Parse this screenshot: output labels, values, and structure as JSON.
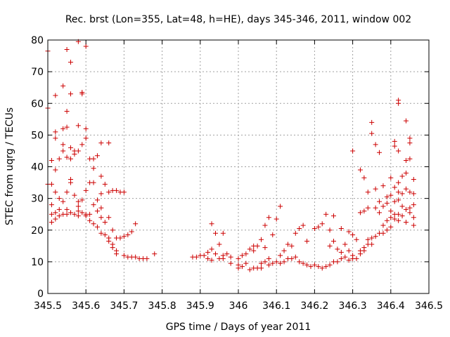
{
  "chart_data": {
    "type": "scatter",
    "title": "Rec. brst (Lon=355, Lat=48, h=HE), days 345-346, 2011, window 002",
    "xlabel": "GPS time / Days of year 2011",
    "ylabel": "STEC from uqrg / TECUs",
    "xlim": [
      345.5,
      346.5
    ],
    "ylim": [
      0,
      80
    ],
    "xticks": [
      "345.5",
      "345.6",
      "345.7",
      "345.8",
      "345.9",
      "346",
      "346.1",
      "346.2",
      "346.3",
      "346.4",
      "346.5"
    ],
    "yticks": [
      "0",
      "10",
      "20",
      "30",
      "40",
      "50",
      "60",
      "70",
      "80"
    ],
    "grid": true,
    "marker": "plus",
    "color": "#cc0000",
    "points": [
      [
        345.5,
        76.5
      ],
      [
        345.5,
        58.5
      ],
      [
        345.5,
        34.5
      ],
      [
        345.51,
        42
      ],
      [
        345.51,
        34.5
      ],
      [
        345.51,
        28
      ],
      [
        345.51,
        25
      ],
      [
        345.51,
        22.5
      ],
      [
        345.52,
        62.5
      ],
      [
        345.52,
        51
      ],
      [
        345.52,
        49
      ],
      [
        345.52,
        39
      ],
      [
        345.52,
        32
      ],
      [
        345.52,
        25.5
      ],
      [
        345.52,
        23.5
      ],
      [
        345.53,
        42.5
      ],
      [
        345.53,
        30
      ],
      [
        345.53,
        26.5
      ],
      [
        345.53,
        24.5
      ],
      [
        345.54,
        65.5
      ],
      [
        345.54,
        52
      ],
      [
        345.54,
        47
      ],
      [
        345.54,
        45
      ],
      [
        345.54,
        29
      ],
      [
        345.54,
        25
      ],
      [
        345.55,
        77
      ],
      [
        345.55,
        57.5
      ],
      [
        345.55,
        52.5
      ],
      [
        345.55,
        43
      ],
      [
        345.55,
        32
      ],
      [
        345.55,
        26.5
      ],
      [
        345.55,
        25
      ],
      [
        345.56,
        73
      ],
      [
        345.56,
        63
      ],
      [
        345.56,
        46
      ],
      [
        345.56,
        42.5
      ],
      [
        345.56,
        36
      ],
      [
        345.56,
        35
      ],
      [
        345.56,
        25.5
      ],
      [
        345.57,
        45
      ],
      [
        345.57,
        44
      ],
      [
        345.57,
        31
      ],
      [
        345.57,
        25
      ],
      [
        345.58,
        79.5
      ],
      [
        345.58,
        53
      ],
      [
        345.58,
        45
      ],
      [
        345.58,
        29
      ],
      [
        345.58,
        27.5
      ],
      [
        345.58,
        26
      ],
      [
        345.58,
        24.5
      ],
      [
        345.59,
        63.5
      ],
      [
        345.59,
        63
      ],
      [
        345.59,
        47
      ],
      [
        345.59,
        29.5
      ],
      [
        345.59,
        25.5
      ],
      [
        345.6,
        78
      ],
      [
        345.6,
        52
      ],
      [
        345.6,
        49
      ],
      [
        345.6,
        32.5
      ],
      [
        345.6,
        25
      ],
      [
        345.6,
        24.5
      ],
      [
        345.61,
        42.5
      ],
      [
        345.61,
        35
      ],
      [
        345.61,
        25
      ],
      [
        345.61,
        23
      ],
      [
        345.62,
        42.5
      ],
      [
        345.62,
        39.5
      ],
      [
        345.62,
        35
      ],
      [
        345.62,
        28
      ],
      [
        345.62,
        22
      ],
      [
        345.63,
        43.5
      ],
      [
        345.63,
        29.5
      ],
      [
        345.63,
        26
      ],
      [
        345.63,
        21
      ],
      [
        345.64,
        47.5
      ],
      [
        345.64,
        37
      ],
      [
        345.64,
        31.5
      ],
      [
        345.64,
        27
      ],
      [
        345.64,
        24
      ],
      [
        345.64,
        19
      ],
      [
        345.65,
        34.5
      ],
      [
        345.65,
        22.5
      ],
      [
        345.65,
        18.5
      ],
      [
        345.66,
        47.5
      ],
      [
        345.66,
        32
      ],
      [
        345.66,
        24
      ],
      [
        345.66,
        17.5
      ],
      [
        345.66,
        16.5
      ],
      [
        345.67,
        32.5
      ],
      [
        345.67,
        20
      ],
      [
        345.67,
        15.5
      ],
      [
        345.67,
        14.5
      ],
      [
        345.68,
        32.5
      ],
      [
        345.68,
        17.5
      ],
      [
        345.68,
        13.5
      ],
      [
        345.68,
        12.5
      ],
      [
        345.69,
        32
      ],
      [
        345.69,
        17.5
      ],
      [
        345.7,
        32
      ],
      [
        345.7,
        18
      ],
      [
        345.7,
        12
      ],
      [
        345.71,
        18.5
      ],
      [
        345.71,
        11.5
      ],
      [
        345.72,
        19.5
      ],
      [
        345.72,
        11.5
      ],
      [
        345.73,
        22
      ],
      [
        345.73,
        11.5
      ],
      [
        345.74,
        11
      ],
      [
        345.75,
        11
      ],
      [
        345.76,
        11
      ],
      [
        345.78,
        12.5
      ],
      [
        345.88,
        11.5
      ],
      [
        345.89,
        11.5
      ],
      [
        345.9,
        12
      ],
      [
        345.91,
        12
      ],
      [
        345.92,
        11
      ],
      [
        345.92,
        13
      ],
      [
        345.93,
        22
      ],
      [
        345.93,
        14
      ],
      [
        345.93,
        10.5
      ],
      [
        345.94,
        19
      ],
      [
        345.94,
        12.5
      ],
      [
        345.95,
        15.5
      ],
      [
        345.95,
        11
      ],
      [
        345.96,
        19
      ],
      [
        345.96,
        12
      ],
      [
        345.96,
        11
      ],
      [
        345.97,
        12.5
      ],
      [
        345.98,
        11.5
      ],
      [
        345.98,
        9.5
      ],
      [
        346.0,
        11
      ],
      [
        346.0,
        9
      ],
      [
        346.0,
        8
      ],
      [
        346.01,
        12
      ],
      [
        346.01,
        8.5
      ],
      [
        346.02,
        12.5
      ],
      [
        346.02,
        9.5
      ],
      [
        346.03,
        14
      ],
      [
        346.03,
        7.5
      ],
      [
        346.04,
        15
      ],
      [
        346.04,
        13.5
      ],
      [
        346.04,
        8
      ],
      [
        346.05,
        15
      ],
      [
        346.05,
        8
      ],
      [
        346.06,
        17
      ],
      [
        346.06,
        9.5
      ],
      [
        346.06,
        8
      ],
      [
        346.07,
        21.5
      ],
      [
        346.07,
        14.5
      ],
      [
        346.07,
        10
      ],
      [
        346.08,
        24
      ],
      [
        346.08,
        11
      ],
      [
        346.08,
        9
      ],
      [
        346.09,
        18.5
      ],
      [
        346.09,
        9.5
      ],
      [
        346.1,
        23.5
      ],
      [
        346.1,
        10
      ],
      [
        346.11,
        27.5
      ],
      [
        346.11,
        12
      ],
      [
        346.11,
        9.5
      ],
      [
        346.12,
        13.5
      ],
      [
        346.12,
        10
      ],
      [
        346.13,
        15.5
      ],
      [
        346.13,
        11
      ],
      [
        346.14,
        15
      ],
      [
        346.14,
        11
      ],
      [
        346.15,
        19
      ],
      [
        346.15,
        11.5
      ],
      [
        346.16,
        20.5
      ],
      [
        346.16,
        10
      ],
      [
        346.17,
        21.5
      ],
      [
        346.17,
        9.5
      ],
      [
        346.18,
        16.5
      ],
      [
        346.18,
        9
      ],
      [
        346.19,
        8.5
      ],
      [
        346.2,
        20.5
      ],
      [
        346.2,
        9
      ],
      [
        346.21,
        21
      ],
      [
        346.21,
        8.5
      ],
      [
        346.22,
        22
      ],
      [
        346.22,
        8
      ],
      [
        346.23,
        25
      ],
      [
        346.23,
        8.5
      ],
      [
        346.24,
        20
      ],
      [
        346.24,
        15
      ],
      [
        346.24,
        9
      ],
      [
        346.25,
        24.5
      ],
      [
        346.25,
        16.5
      ],
      [
        346.25,
        10
      ],
      [
        346.26,
        14
      ],
      [
        346.26,
        10
      ],
      [
        346.27,
        20.5
      ],
      [
        346.27,
        13
      ],
      [
        346.27,
        11
      ],
      [
        346.28,
        15.5
      ],
      [
        346.28,
        11.5
      ],
      [
        346.29,
        19.5
      ],
      [
        346.29,
        13.5
      ],
      [
        346.29,
        10.5
      ],
      [
        346.3,
        45
      ],
      [
        346.3,
        18.5
      ],
      [
        346.3,
        12
      ],
      [
        346.3,
        11
      ],
      [
        346.31,
        17
      ],
      [
        346.31,
        11
      ],
      [
        346.32,
        39
      ],
      [
        346.32,
        25.5
      ],
      [
        346.32,
        13.5
      ],
      [
        346.32,
        12.5
      ],
      [
        346.33,
        36.5
      ],
      [
        346.33,
        26
      ],
      [
        346.33,
        14.5
      ],
      [
        346.33,
        13.5
      ],
      [
        346.34,
        32
      ],
      [
        346.34,
        27
      ],
      [
        346.34,
        17
      ],
      [
        346.34,
        15.5
      ],
      [
        346.35,
        54
      ],
      [
        346.35,
        50.5
      ],
      [
        346.35,
        17.5
      ],
      [
        346.35,
        15.5
      ],
      [
        346.36,
        47
      ],
      [
        346.36,
        33
      ],
      [
        346.36,
        27
      ],
      [
        346.36,
        18
      ],
      [
        346.37,
        44.5
      ],
      [
        346.37,
        29
      ],
      [
        346.37,
        25.5
      ],
      [
        346.37,
        19
      ],
      [
        346.38,
        34
      ],
      [
        346.38,
        27.5
      ],
      [
        346.38,
        21.5
      ],
      [
        346.38,
        19
      ],
      [
        346.39,
        30.5
      ],
      [
        346.39,
        28.5
      ],
      [
        346.39,
        23
      ],
      [
        346.39,
        20
      ],
      [
        346.4,
        36.5
      ],
      [
        346.4,
        31
      ],
      [
        346.4,
        26
      ],
      [
        346.4,
        24
      ],
      [
        346.4,
        21
      ],
      [
        346.41,
        48
      ],
      [
        346.41,
        46.5
      ],
      [
        346.41,
        33.5
      ],
      [
        346.41,
        29
      ],
      [
        346.41,
        25
      ],
      [
        346.41,
        23.5
      ],
      [
        346.42,
        61
      ],
      [
        346.42,
        60
      ],
      [
        346.42,
        45
      ],
      [
        346.42,
        35
      ],
      [
        346.42,
        32
      ],
      [
        346.42,
        29.5
      ],
      [
        346.42,
        25
      ],
      [
        346.42,
        23
      ],
      [
        346.43,
        37
      ],
      [
        346.43,
        31.5
      ],
      [
        346.43,
        27.5
      ],
      [
        346.43,
        24.5
      ],
      [
        346.44,
        54.5
      ],
      [
        346.44,
        42
      ],
      [
        346.44,
        38
      ],
      [
        346.44,
        33
      ],
      [
        346.44,
        26.5
      ],
      [
        346.44,
        22.5
      ],
      [
        346.45,
        49
      ],
      [
        346.45,
        47.5
      ],
      [
        346.45,
        42.5
      ],
      [
        346.45,
        32
      ],
      [
        346.45,
        27
      ],
      [
        346.45,
        25.5
      ],
      [
        346.46,
        36
      ],
      [
        346.46,
        31.5
      ],
      [
        346.46,
        28
      ],
      [
        346.46,
        24
      ],
      [
        346.46,
        21.5
      ]
    ]
  }
}
